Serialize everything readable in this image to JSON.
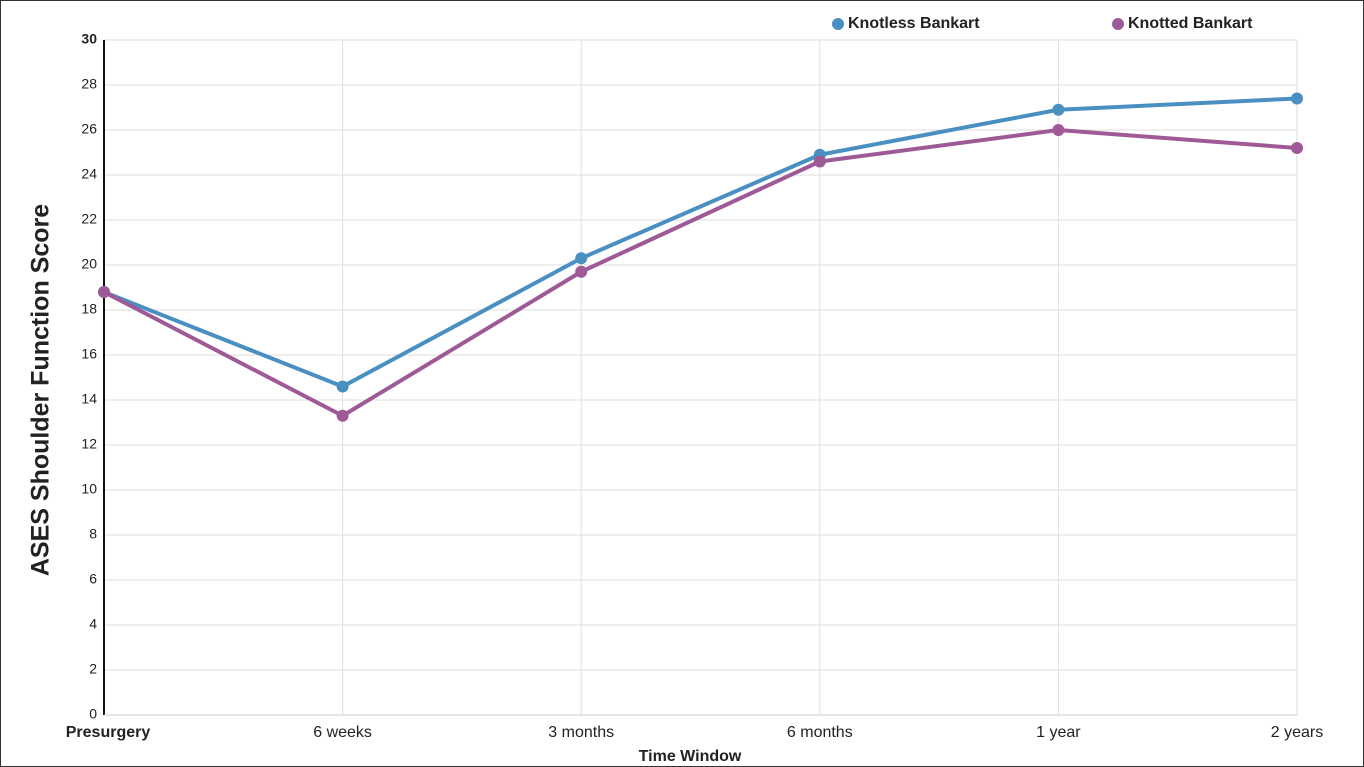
{
  "chart_data": {
    "type": "line",
    "xlabel": "Time Window",
    "ylabel": "ASES Shoulder Function Score",
    "categories": [
      "Presurgery",
      "6 weeks",
      "3 months",
      "6 months",
      "1 year",
      "2 years"
    ],
    "series": [
      {
        "name": "Knotless Bankart",
        "color": "#4a8fc1",
        "values": [
          18.8,
          14.6,
          20.3,
          24.9,
          26.9,
          27.4
        ]
      },
      {
        "name": "Knotted Bankart",
        "color": "#9e5a96",
        "values": [
          18.8,
          13.3,
          19.7,
          24.6,
          26.0,
          25.2
        ]
      }
    ],
    "ylim": [
      0,
      30
    ],
    "yticks": [
      0,
      2,
      4,
      6,
      8,
      10,
      12,
      14,
      16,
      18,
      20,
      22,
      24,
      26,
      28,
      30
    ],
    "grid": true,
    "legend": "top-right"
  }
}
